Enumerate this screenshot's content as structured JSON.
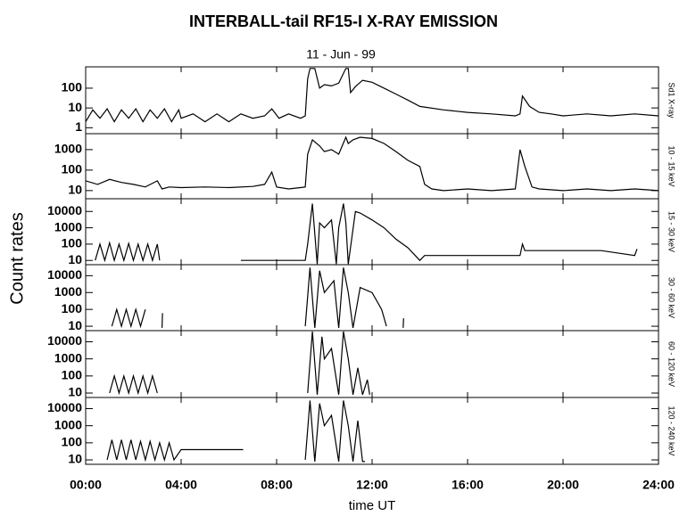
{
  "chart_data": {
    "type": "line",
    "title": "INTERBALL-tail  RF15-I   X-RAY  EMISSION",
    "subtitle": "11 - Jun - 99",
    "xlabel": "time UT",
    "ylabel": "Count  rates",
    "color": "#000000",
    "log_scale": true,
    "xlim": [
      0,
      24
    ],
    "xticks": [
      {
        "value": 0,
        "label": "00:00"
      },
      {
        "value": 4,
        "label": "04:00"
      },
      {
        "value": 8,
        "label": "08:00"
      },
      {
        "value": 12,
        "label": "12:00"
      },
      {
        "value": 16,
        "label": "16:00"
      },
      {
        "value": 20,
        "label": "20:00"
      },
      {
        "value": 24,
        "label": "24:00"
      }
    ],
    "panels": [
      {
        "name": "Sd1 X-ray",
        "ylim": [
          0.5,
          1200
        ],
        "yticks": [
          1,
          10,
          100
        ],
        "x": [
          0,
          0.3,
          0.6,
          0.9,
          1.2,
          1.5,
          1.8,
          2.1,
          2.4,
          2.7,
          3.0,
          3.3,
          3.6,
          3.9,
          4.0,
          4.5,
          5,
          5.5,
          6,
          6.5,
          7,
          7.5,
          7.8,
          8.1,
          8.5,
          9,
          9.2,
          9.3,
          9.4,
          9.6,
          9.8,
          10,
          10.3,
          10.6,
          10.9,
          11.0,
          11.1,
          11.3,
          11.6,
          12,
          12.5,
          13,
          13.5,
          14,
          15,
          16,
          17,
          18,
          18.2,
          18.3,
          18.6,
          19,
          19.5,
          20,
          21,
          22,
          23,
          24
        ],
        "values": [
          2,
          8,
          3,
          9,
          2,
          8,
          3,
          9,
          2,
          8,
          3,
          9,
          2,
          8,
          3,
          5,
          2,
          5,
          2,
          5,
          3,
          4,
          9,
          3,
          5,
          3,
          4,
          300,
          1000,
          1000,
          100,
          150,
          130,
          180,
          1000,
          1000,
          60,
          120,
          250,
          200,
          100,
          50,
          25,
          12,
          8,
          6,
          5,
          4,
          5,
          40,
          12,
          6,
          5,
          4,
          5,
          4,
          5,
          4
        ]
      },
      {
        "name": "10 - 15 keV",
        "ylim": [
          4,
          6000
        ],
        "yticks": [
          10,
          100,
          1000
        ],
        "x": [
          0,
          0.5,
          1,
          1.5,
          2,
          2.5,
          3,
          3.2,
          3.5,
          4,
          5,
          6,
          7,
          7.5,
          7.8,
          8,
          8.5,
          9,
          9.2,
          9.3,
          9.5,
          9.8,
          10,
          10.3,
          10.6,
          10.9,
          11,
          11.2,
          11.5,
          12,
          12.5,
          13,
          13.5,
          14,
          14.2,
          14.5,
          15,
          16,
          17,
          18,
          18.2,
          18.4,
          18.7,
          19,
          20,
          21,
          22,
          23,
          24
        ],
        "values": [
          30,
          20,
          35,
          25,
          20,
          15,
          30,
          12,
          15,
          14,
          15,
          14,
          16,
          20,
          80,
          15,
          12,
          14,
          15,
          600,
          3000,
          1500,
          800,
          1000,
          600,
          4000,
          2000,
          3000,
          4000,
          3500,
          2000,
          800,
          300,
          150,
          20,
          12,
          10,
          12,
          10,
          12,
          1000,
          150,
          15,
          12,
          10,
          12,
          10,
          12,
          10
        ]
      },
      {
        "name": "15 - 30 keV",
        "ylim": [
          5.5,
          60000
        ],
        "yticks": [
          10,
          100,
          1000,
          10000
        ],
        "x": [
          0.4,
          0.6,
          0.8,
          1.0,
          1.2,
          1.4,
          1.6,
          1.8,
          2.0,
          2.2,
          2.4,
          2.6,
          2.8,
          3.0,
          3.1,
          3.15,
          6.5,
          9.2,
          9.3,
          9.5,
          9.7,
          9.8,
          10.0,
          10.3,
          10.5,
          10.6,
          10.8,
          10.9,
          11.0,
          11.3,
          11.5,
          12,
          12.5,
          13,
          13.5,
          14,
          14.2,
          18.2,
          18.3,
          18.4,
          21.6,
          23,
          23.1
        ],
        "values": [
          10,
          100,
          10,
          120,
          10,
          100,
          10,
          110,
          10,
          100,
          10,
          100,
          10,
          100,
          10,
          null,
          10,
          10,
          100,
          30000,
          6,
          2000,
          1000,
          3000,
          6,
          1000,
          30000,
          2000,
          6,
          10000,
          8000,
          3000,
          1000,
          200,
          60,
          10,
          20,
          20,
          100,
          40,
          40,
          20,
          50
        ]
      },
      {
        "name": "30 - 60 keV",
        "ylim": [
          5.5,
          45000
        ],
        "yticks": [
          10,
          100,
          1000,
          10000
        ],
        "x": [
          1.1,
          1.3,
          1.5,
          1.7,
          1.9,
          2.1,
          2.3,
          2.5,
          2.6,
          3.2,
          3.22,
          3.25,
          9.2,
          9.4,
          9.6,
          9.8,
          10.0,
          10.4,
          10.6,
          10.8,
          11.0,
          11.2,
          11.5,
          12,
          12.4,
          12.6,
          12.7,
          13.3,
          13.32,
          13.35
        ],
        "values": [
          10,
          100,
          10,
          100,
          10,
          100,
          10,
          100,
          null,
          8,
          60,
          null,
          10,
          30000,
          8,
          20000,
          1000,
          5000,
          8,
          30000,
          1000,
          8,
          2000,
          1000,
          100,
          10,
          null,
          8,
          30,
          null
        ]
      },
      {
        "name": "60 - 120 keV",
        "ylim": [
          5.5,
          45000
        ],
        "yticks": [
          10,
          100,
          1000,
          10000
        ],
        "x": [
          1.0,
          1.2,
          1.4,
          1.6,
          1.8,
          2.0,
          2.2,
          2.4,
          2.6,
          2.8,
          3.0,
          3.1,
          9.3,
          9.5,
          9.7,
          9.9,
          10.0,
          10.3,
          10.6,
          10.8,
          11.0,
          11.2,
          11.4,
          11.6,
          11.8,
          11.9
        ],
        "values": [
          10,
          100,
          10,
          100,
          10,
          100,
          10,
          100,
          10,
          100,
          10,
          null,
          10,
          40000,
          8,
          20000,
          1000,
          4000,
          8,
          40000,
          1000,
          8,
          300,
          8,
          60,
          8
        ]
      },
      {
        "name": "120 - 240 keV",
        "ylim": [
          5.5,
          45000
        ],
        "yticks": [
          10,
          100,
          1000,
          10000
        ],
        "x": [
          0.9,
          1.1,
          1.3,
          1.5,
          1.7,
          1.9,
          2.1,
          2.3,
          2.5,
          2.7,
          2.9,
          3.1,
          3.3,
          3.5,
          3.7,
          4.0,
          6.6,
          6.65,
          9.2,
          9.4,
          9.6,
          9.8,
          10.0,
          10.3,
          10.6,
          10.8,
          11.0,
          11.2,
          11.4,
          11.6,
          11.7
        ],
        "values": [
          10,
          150,
          10,
          150,
          10,
          150,
          10,
          120,
          10,
          120,
          10,
          100,
          10,
          100,
          10,
          40,
          40,
          null,
          10,
          30000,
          8,
          20000,
          1000,
          4000,
          8,
          30000,
          1000,
          8,
          2000,
          8,
          8
        ]
      }
    ]
  }
}
